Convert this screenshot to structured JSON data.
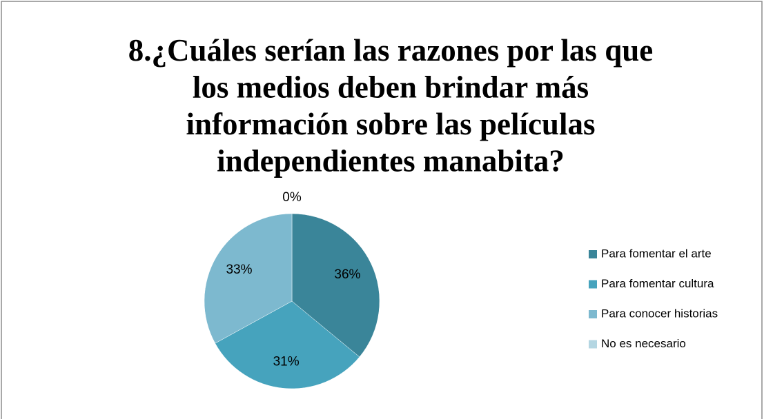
{
  "chart_data": {
    "type": "pie",
    "title": [
      "8.¿Cuáles serían las razones por las que",
      "los medios deben brindar más",
      "información sobre las películas",
      "independientes manabita?"
    ],
    "categories": [
      "Para fomentar el arte",
      "Para fomentar cultura",
      "Para conocer historias",
      "No es necesario"
    ],
    "values": [
      36,
      31,
      33,
      0
    ],
    "value_labels": [
      "36%",
      "31%",
      "33%",
      "0%"
    ],
    "colors": [
      "#3a8599",
      "#46a3bd",
      "#7db9cf",
      "#b4d6e2"
    ],
    "legend": "right"
  }
}
